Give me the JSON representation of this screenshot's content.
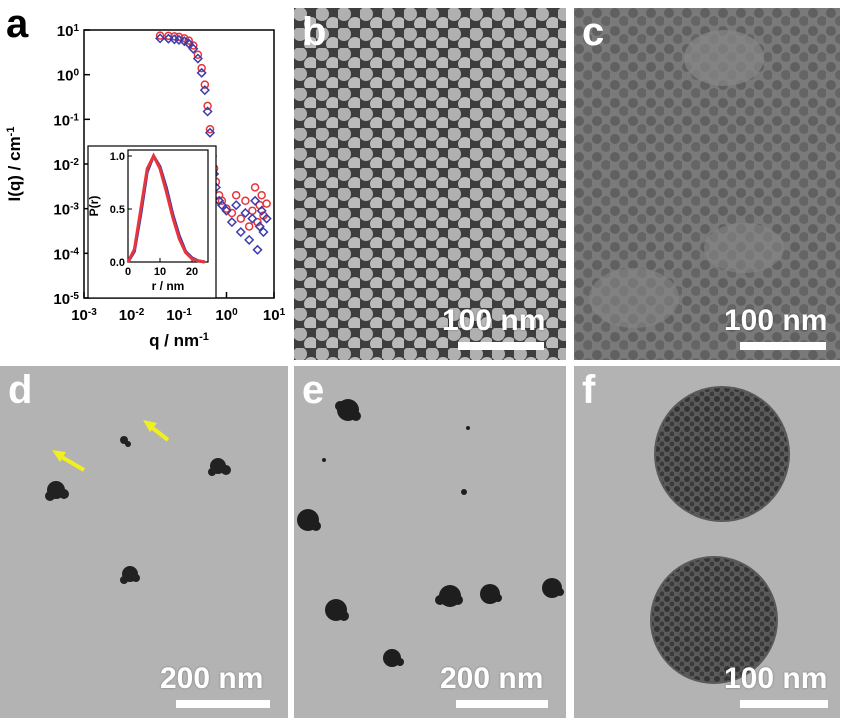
{
  "panels": {
    "a": {
      "letter": "a"
    },
    "b": {
      "letter": "b",
      "scale_label": "100 nm"
    },
    "c": {
      "letter": "c",
      "scale_label": "100 nm"
    },
    "d": {
      "letter": "d",
      "scale_label": "200 nm"
    },
    "e": {
      "letter": "e",
      "scale_label": "200 nm"
    },
    "f": {
      "letter": "f",
      "scale_label": "100 nm"
    }
  },
  "colors": {
    "series_red": "#e8343a",
    "series_blue": "#3c3caa",
    "arrow": "#f0f020"
  },
  "chart_data": [
    {
      "type": "scatter",
      "ylabel": "I(q) / cm",
      "ylabel_sup": "-1",
      "xlabel": "q / nm",
      "xlabel_sup": "-1",
      "xscale": "log",
      "yscale": "log",
      "xlim": [
        0.001,
        10
      ],
      "ylim": [
        1e-05,
        10
      ],
      "x_ticks": [
        {
          "base": "10",
          "exp": "-3"
        },
        {
          "base": "10",
          "exp": "-2"
        },
        {
          "base": "10",
          "exp": "-1"
        },
        {
          "base": "10",
          "exp": "0"
        },
        {
          "base": "10",
          "exp": "1"
        }
      ],
      "y_ticks": [
        {
          "base": "10",
          "exp": "1"
        },
        {
          "base": "10",
          "exp": "0"
        },
        {
          "base": "10",
          "exp": "-1"
        },
        {
          "base": "10",
          "exp": "-2"
        },
        {
          "base": "10",
          "exp": "-3"
        },
        {
          "base": "10",
          "exp": "-4"
        },
        {
          "base": "10",
          "exp": "-5"
        }
      ],
      "series": [
        {
          "color_key": "series_red",
          "marker": "circle",
          "x": [
            0.04,
            0.06,
            0.08,
            0.1,
            0.13,
            0.16,
            0.2,
            0.25,
            0.3,
            0.35,
            0.4,
            0.45,
            0.5,
            0.55,
            0.6,
            0.7,
            0.8,
            1.0,
            1.3,
            1.6,
            2.0,
            2.5,
            3.0,
            3.5,
            4.0,
            4.5,
            5.0,
            5.5,
            6.0,
            7.0
          ],
          "y": [
            7.5,
            7.4,
            7.2,
            7.0,
            6.5,
            5.8,
            4.5,
            2.8,
            1.4,
            0.6,
            0.2,
            0.06,
            0.02,
            0.008,
            0.004,
            0.002,
            0.0015,
            0.001,
            0.0008,
            0.002,
            0.0006,
            0.0015,
            0.0004,
            0.0009,
            0.003,
            0.0005,
            0.0012,
            0.002,
            0.0007,
            0.0013
          ]
        },
        {
          "color_key": "series_blue",
          "marker": "diamond",
          "x": [
            0.04,
            0.06,
            0.08,
            0.1,
            0.13,
            0.16,
            0.2,
            0.25,
            0.3,
            0.35,
            0.4,
            0.45,
            0.5,
            0.55,
            0.6,
            0.7,
            0.8,
            1.0,
            1.3,
            1.6,
            2.0,
            2.5,
            3.0,
            3.5,
            4.0,
            4.5,
            5.0,
            5.5,
            6.0,
            7.0
          ],
          "y": [
            6.5,
            6.4,
            6.2,
            6.0,
            5.6,
            5.0,
            3.8,
            2.3,
            1.1,
            0.45,
            0.15,
            0.05,
            0.015,
            0.006,
            0.003,
            0.0015,
            0.0012,
            0.0009,
            0.0005,
            0.0012,
            0.0003,
            0.0008,
            0.0002,
            0.0006,
            0.0015,
            0.00012,
            0.0004,
            0.0009,
            0.0003,
            0.0006
          ]
        }
      ]
    },
    {
      "type": "line",
      "ylabel": "P(r)",
      "xlabel": "r / nm",
      "xlim": [
        0,
        25
      ],
      "ylim": [
        0,
        1.0
      ],
      "x_ticks": [
        "0",
        "10",
        "20"
      ],
      "y_ticks": [
        "0.0",
        "0.5",
        "1.0"
      ],
      "series": [
        {
          "color_key": "series_blue",
          "x": [
            0,
            2,
            4,
            6,
            8,
            10,
            12,
            14,
            16,
            18,
            20,
            22,
            24
          ],
          "y": [
            0,
            0.1,
            0.45,
            0.85,
            1.0,
            0.9,
            0.7,
            0.45,
            0.25,
            0.1,
            0.04,
            0.01,
            0
          ]
        },
        {
          "color_key": "series_red",
          "x": [
            0,
            2,
            4,
            6,
            8,
            10,
            12,
            14,
            16,
            18,
            20,
            22,
            24
          ],
          "y": [
            0,
            0.12,
            0.5,
            0.88,
            1.0,
            0.88,
            0.66,
            0.42,
            0.22,
            0.09,
            0.03,
            0.01,
            0
          ]
        }
      ]
    }
  ]
}
